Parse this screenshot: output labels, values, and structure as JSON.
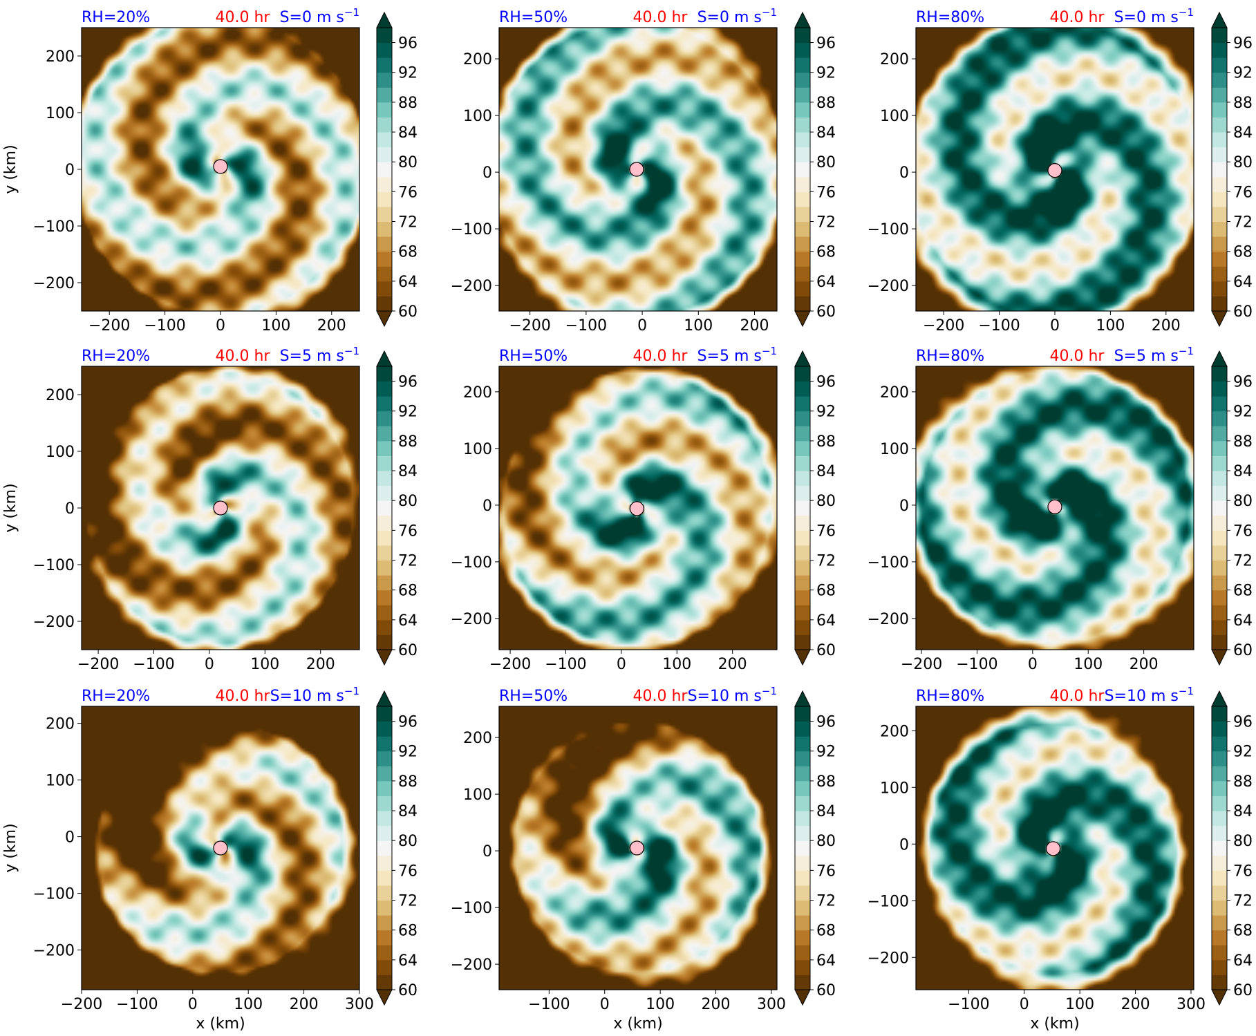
{
  "figure": {
    "time_label": "40.0 hr",
    "y_axis_label": "y (km)",
    "x_axis_label": "x (km)",
    "colors": {
      "title_rh": "#0000ff",
      "title_time": "#ff0000",
      "title_shear": "#0000ff",
      "center_marker": "#ffc0cb",
      "colormap": [
        "#543005",
        "#8c510a",
        "#bf812d",
        "#dfc27d",
        "#f6e8c3",
        "#f5f5f5",
        "#c7eae5",
        "#80cdc1",
        "#35978f",
        "#01665e",
        "#003c30"
      ]
    }
  },
  "colorbar": {
    "levels": [
      60,
      62,
      64,
      66,
      68,
      70,
      72,
      74,
      76,
      78,
      80,
      82,
      84,
      86,
      88,
      90,
      92,
      94,
      96,
      98
    ],
    "tick_labels": [
      "60",
      "64",
      "68",
      "72",
      "76",
      "80",
      "84",
      "88",
      "92",
      "96"
    ],
    "extend": "both"
  },
  "chart_data": [
    {
      "type": "heatmap",
      "rh": "RH=20%",
      "time": "40.0 hr",
      "shear": "S=0 m s",
      "shear_exp": "−1",
      "xlim": [
        -250,
        250
      ],
      "ylim": [
        -250,
        250
      ],
      "x_ticks": [
        "−200",
        "−100",
        "0",
        "100",
        "200"
      ],
      "y_ticks": [
        "200",
        "100",
        "0",
        "−100",
        "−200"
      ],
      "center": [
        0,
        5
      ],
      "zmin": 60,
      "zmax": 98
    },
    {
      "type": "heatmap",
      "rh": "RH=50%",
      "time": "40.0 hr",
      "shear": "S=0 m s",
      "shear_exp": "−1",
      "xlim": [
        -255,
        240
      ],
      "ylim": [
        -245,
        255
      ],
      "x_ticks": [
        "−200",
        "−100",
        "0",
        "100",
        "200"
      ],
      "y_ticks": [
        "200",
        "100",
        "0",
        "−100",
        "−200"
      ],
      "center": [
        -10,
        5
      ],
      "zmin": 60,
      "zmax": 98
    },
    {
      "type": "heatmap",
      "rh": "RH=80%",
      "time": "40.0 hr",
      "shear": "S=0 m s",
      "shear_exp": "−1",
      "xlim": [
        -250,
        250
      ],
      "ylim": [
        -245,
        255
      ],
      "x_ticks": [
        "−200",
        "−100",
        "0",
        "100",
        "200"
      ],
      "y_ticks": [
        "200",
        "100",
        "0",
        "−100",
        "−200"
      ],
      "center": [
        0,
        3
      ],
      "zmin": 60,
      "zmax": 98
    },
    {
      "type": "heatmap",
      "rh": "RH=20%",
      "time": "40.0 hr",
      "shear": "S=5 m s",
      "shear_exp": "−1",
      "xlim": [
        -230,
        270
      ],
      "ylim": [
        -250,
        250
      ],
      "x_ticks": [
        "−200",
        "−100",
        "0",
        "100",
        "200"
      ],
      "y_ticks": [
        "200",
        "100",
        "0",
        "−100",
        "−200"
      ],
      "center": [
        20,
        0
      ],
      "zmin": 60,
      "zmax": 98
    },
    {
      "type": "heatmap",
      "rh": "RH=50%",
      "time": "40.0 hr",
      "shear": "S=5 m s",
      "shear_exp": "−1",
      "xlim": [
        -220,
        280
      ],
      "ylim": [
        -255,
        245
      ],
      "x_ticks": [
        "−200",
        "−100",
        "0",
        "100",
        "200"
      ],
      "y_ticks": [
        "200",
        "100",
        "0",
        "−100",
        "−200"
      ],
      "center": [
        28,
        -6
      ],
      "zmin": 60,
      "zmax": 98
    },
    {
      "type": "heatmap",
      "rh": "RH=80%",
      "time": "40.0 hr",
      "shear": "S=5 m s",
      "shear_exp": "−1",
      "xlim": [
        -210,
        290
      ],
      "ylim": [
        -255,
        245
      ],
      "x_ticks": [
        "−200",
        "−100",
        "0",
        "100",
        "200"
      ],
      "y_ticks": [
        "200",
        "100",
        "0",
        "−100",
        "−200"
      ],
      "center": [
        40,
        -3
      ],
      "zmin": 60,
      "zmax": 98
    },
    {
      "type": "heatmap",
      "rh": "RH=20%",
      "time": "40.0 hr",
      "shear": "S=10 m s",
      "shear_exp": "−1",
      "xlim": [
        -200,
        300
      ],
      "ylim": [
        -270,
        230
      ],
      "x_ticks": [
        "−200",
        "−100",
        "0",
        "100",
        "200",
        "300"
      ],
      "y_ticks": [
        "200",
        "100",
        "0",
        "−100",
        "−200"
      ],
      "center": [
        50,
        -20
      ],
      "zmin": 60,
      "zmax": 98
    },
    {
      "type": "heatmap",
      "rh": "RH=50%",
      "time": "40.0 hr",
      "shear": "S=10 m s",
      "shear_exp": "−1",
      "xlim": [
        -190,
        310
      ],
      "ylim": [
        -245,
        255
      ],
      "x_ticks": [
        "−100",
        "0",
        "100",
        "200",
        "300"
      ],
      "y_ticks": [
        "200",
        "100",
        "0",
        "−100",
        "−200"
      ],
      "center": [
        58,
        5
      ],
      "zmin": 60,
      "zmax": 98
    },
    {
      "type": "heatmap",
      "rh": "RH=80%",
      "time": "40.0 hr",
      "shear": "S=10 m s",
      "shear_exp": "−1",
      "xlim": [
        -195,
        305
      ],
      "ylim": [
        -257,
        243
      ],
      "x_ticks": [
        "−100",
        "0",
        "100",
        "200",
        "300"
      ],
      "y_ticks": [
        "200",
        "100",
        "0",
        "−100",
        "−200"
      ],
      "center": [
        52,
        -8
      ],
      "zmin": 60,
      "zmax": 98
    }
  ]
}
